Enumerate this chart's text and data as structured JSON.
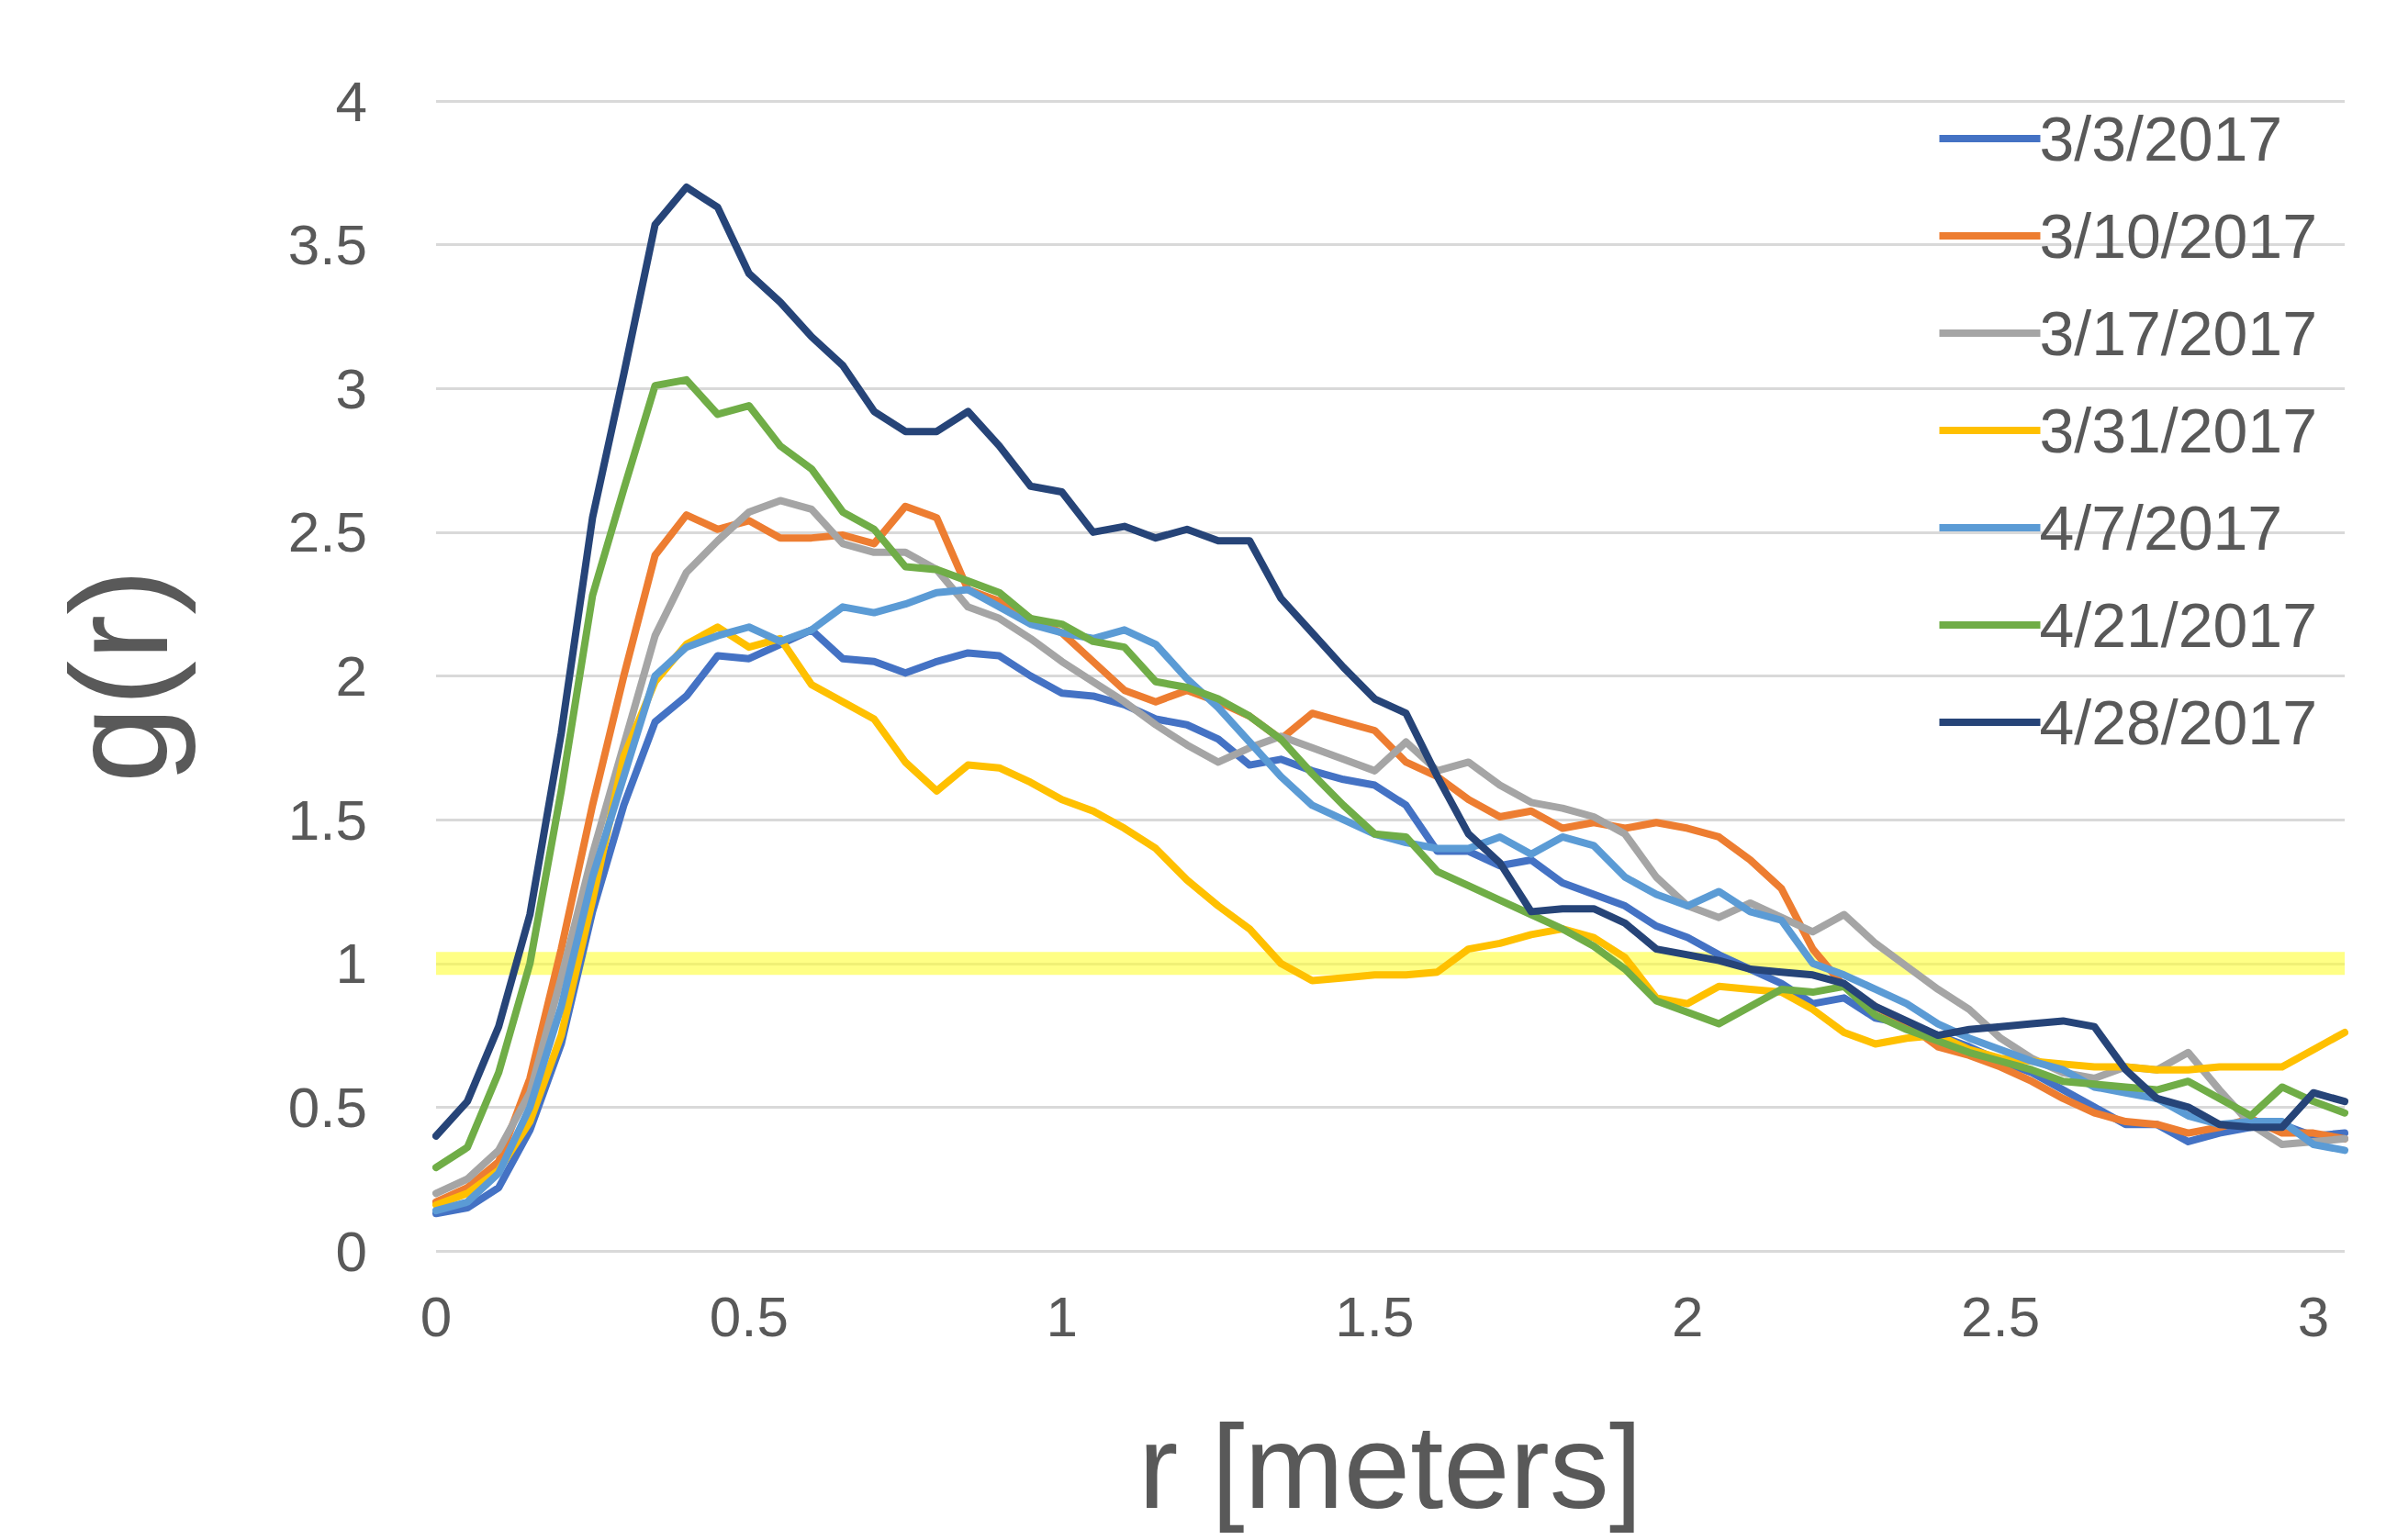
{
  "chart_data": {
    "type": "line",
    "xlabel": "r [meters]",
    "ylabel": "g(r)",
    "x": [
      0,
      0.05,
      0.1,
      0.15,
      0.2,
      0.25,
      0.3,
      0.35,
      0.4,
      0.45,
      0.5,
      0.55,
      0.6,
      0.65,
      0.7,
      0.75,
      0.8,
      0.85,
      0.9,
      0.95,
      1,
      1.05,
      1.1,
      1.15,
      1.2,
      1.25,
      1.3,
      1.35,
      1.4,
      1.45,
      1.5,
      1.55,
      1.6,
      1.65,
      1.7,
      1.75,
      1.8,
      1.85,
      1.9,
      1.95,
      2,
      2.05,
      2.1,
      2.15,
      2.2,
      2.25,
      2.3,
      2.35,
      2.4,
      2.45,
      2.5,
      2.55,
      2.6,
      2.65,
      2.7,
      2.75,
      2.8,
      2.85,
      2.9,
      2.95,
      3,
      3.05
    ],
    "series": [
      {
        "name": "3/3/2017",
        "color": "#4472c4",
        "values": [
          0.13,
          0.15,
          0.22,
          0.42,
          0.72,
          1.18,
          1.55,
          1.84,
          1.93,
          2.07,
          2.06,
          2.11,
          2.16,
          2.06,
          2.05,
          2.01,
          2.05,
          2.08,
          2.07,
          2.0,
          1.94,
          1.93,
          1.9,
          1.85,
          1.83,
          1.78,
          1.69,
          1.71,
          1.67,
          1.64,
          1.62,
          1.55,
          1.39,
          1.39,
          1.34,
          1.36,
          1.28,
          1.24,
          1.2,
          1.13,
          1.09,
          1.03,
          0.98,
          0.93,
          0.86,
          0.88,
          0.81,
          0.79,
          0.75,
          0.71,
          0.66,
          0.62,
          0.56,
          0.5,
          0.44,
          0.44,
          0.38,
          0.41,
          0.43,
          0.44,
          0.4,
          0.41
        ]
      },
      {
        "name": "3/10/2017",
        "color": "#ed7d31",
        "values": [
          0.17,
          0.22,
          0.31,
          0.6,
          1.05,
          1.55,
          2.0,
          2.42,
          2.56,
          2.51,
          2.54,
          2.48,
          2.48,
          2.49,
          2.46,
          2.59,
          2.55,
          2.3,
          2.26,
          2.2,
          2.15,
          2.05,
          1.95,
          1.91,
          1.95,
          1.91,
          1.86,
          1.78,
          1.87,
          1.84,
          1.81,
          1.7,
          1.65,
          1.57,
          1.51,
          1.53,
          1.47,
          1.49,
          1.47,
          1.49,
          1.47,
          1.44,
          1.36,
          1.26,
          1.05,
          0.92,
          0.85,
          0.79,
          0.71,
          0.68,
          0.64,
          0.59,
          0.53,
          0.48,
          0.45,
          0.44,
          0.41,
          0.43,
          0.46,
          0.41,
          0.41,
          0.39
        ]
      },
      {
        "name": "3/17/2017",
        "color": "#a5a5a5",
        "values": [
          0.2,
          0.25,
          0.35,
          0.55,
          0.95,
          1.38,
          1.76,
          2.14,
          2.36,
          2.47,
          2.57,
          2.61,
          2.58,
          2.46,
          2.43,
          2.43,
          2.37,
          2.24,
          2.2,
          2.13,
          2.05,
          1.98,
          1.91,
          1.83,
          1.76,
          1.7,
          1.75,
          1.79,
          1.75,
          1.71,
          1.67,
          1.77,
          1.67,
          1.7,
          1.62,
          1.56,
          1.54,
          1.51,
          1.45,
          1.3,
          1.2,
          1.16,
          1.21,
          1.16,
          1.11,
          1.17,
          1.07,
          0.99,
          0.91,
          0.84,
          0.74,
          0.67,
          0.62,
          0.6,
          0.64,
          0.63,
          0.69,
          0.56,
          0.44,
          0.37,
          0.38,
          0.39
        ]
      },
      {
        "name": "3/31/2017",
        "color": "#ffc000",
        "values": [
          0.16,
          0.2,
          0.28,
          0.45,
          0.75,
          1.22,
          1.72,
          1.98,
          2.11,
          2.17,
          2.1,
          2.13,
          1.97,
          1.91,
          1.85,
          1.7,
          1.6,
          1.69,
          1.68,
          1.63,
          1.57,
          1.53,
          1.47,
          1.4,
          1.29,
          1.2,
          1.12,
          1.0,
          0.94,
          0.95,
          0.96,
          0.96,
          0.97,
          1.05,
          1.07,
          1.1,
          1.12,
          1.09,
          1.02,
          0.88,
          0.86,
          0.92,
          0.91,
          0.9,
          0.84,
          0.76,
          0.72,
          0.74,
          0.75,
          0.7,
          0.67,
          0.66,
          0.65,
          0.64,
          0.64,
          0.63,
          0.63,
          0.64,
          0.64,
          0.64,
          0.7,
          0.76
        ]
      },
      {
        "name": "4/7/2017",
        "color": "#5b9bd5",
        "values": [
          0.14,
          0.17,
          0.27,
          0.5,
          0.85,
          1.3,
          1.65,
          2.0,
          2.1,
          2.14,
          2.17,
          2.12,
          2.16,
          2.24,
          2.22,
          2.25,
          2.29,
          2.3,
          2.24,
          2.18,
          2.15,
          2.13,
          2.16,
          2.11,
          1.99,
          1.89,
          1.77,
          1.65,
          1.55,
          1.5,
          1.45,
          1.42,
          1.4,
          1.4,
          1.44,
          1.38,
          1.44,
          1.41,
          1.3,
          1.24,
          1.2,
          1.25,
          1.18,
          1.15,
          1.0,
          0.96,
          0.91,
          0.86,
          0.79,
          0.74,
          0.7,
          0.66,
          0.63,
          0.57,
          0.55,
          0.53,
          0.47,
          0.44,
          0.45,
          0.45,
          0.37,
          0.35
        ]
      },
      {
        "name": "4/21/2017",
        "color": "#70ad47",
        "values": [
          0.29,
          0.36,
          0.62,
          1.0,
          1.6,
          2.28,
          2.65,
          3.01,
          3.03,
          2.91,
          2.94,
          2.8,
          2.72,
          2.57,
          2.51,
          2.38,
          2.37,
          2.33,
          2.29,
          2.2,
          2.18,
          2.12,
          2.1,
          1.98,
          1.96,
          1.92,
          1.86,
          1.78,
          1.66,
          1.55,
          1.45,
          1.44,
          1.32,
          1.27,
          1.22,
          1.17,
          1.12,
          1.06,
          0.98,
          0.87,
          0.83,
          0.79,
          0.85,
          0.91,
          0.9,
          0.92,
          0.82,
          0.77,
          0.73,
          0.69,
          0.66,
          0.63,
          0.59,
          0.58,
          0.57,
          0.56,
          0.59,
          0.53,
          0.47,
          0.57,
          0.52,
          0.48
        ]
      },
      {
        "name": "4/28/2017",
        "color": "#264478",
        "values": [
          0.4,
          0.52,
          0.78,
          1.17,
          1.8,
          2.55,
          3.05,
          3.57,
          3.7,
          3.63,
          3.4,
          3.3,
          3.18,
          3.08,
          2.92,
          2.85,
          2.85,
          2.92,
          2.8,
          2.66,
          2.64,
          2.5,
          2.52,
          2.48,
          2.51,
          2.47,
          2.47,
          2.27,
          2.15,
          2.03,
          1.92,
          1.87,
          1.65,
          1.45,
          1.35,
          1.18,
          1.19,
          1.19,
          1.14,
          1.05,
          1.03,
          1.01,
          0.98,
          0.97,
          0.96,
          0.93,
          0.85,
          0.8,
          0.75,
          0.77,
          0.78,
          0.79,
          0.8,
          0.78,
          0.63,
          0.53,
          0.5,
          0.44,
          0.43,
          0.43,
          0.55,
          0.52
        ]
      }
    ],
    "bands": [
      {
        "axis": "y",
        "from": 0.96,
        "to": 1.04,
        "color": "#ffff33"
      }
    ],
    "xlim": [
      0,
      3.05
    ],
    "xticks": [
      0,
      0.5,
      1,
      1.5,
      2,
      2.5,
      3
    ],
    "ylim": [
      0,
      4
    ],
    "yticks": [
      0,
      0.5,
      1,
      1.5,
      2,
      2.5,
      3,
      3.5,
      4
    ],
    "grid": "y",
    "legend": "top right",
    "marker": "none",
    "line_style": "solid"
  }
}
